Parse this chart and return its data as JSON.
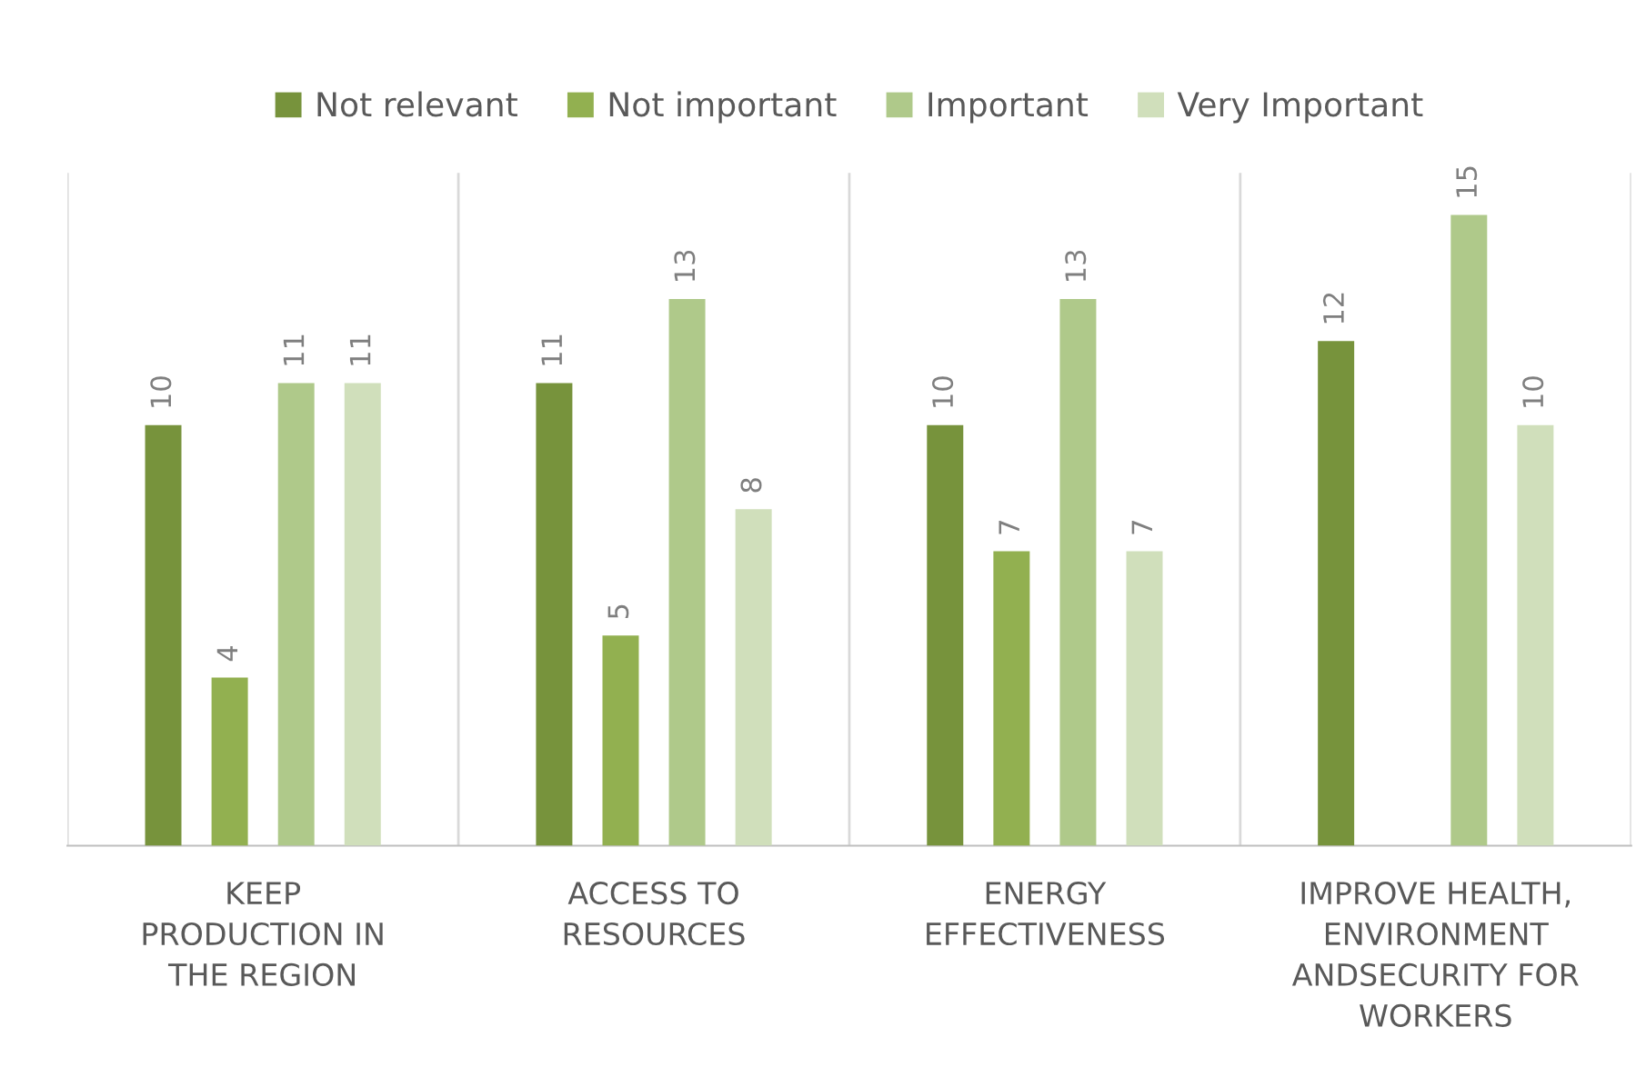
{
  "chart_data": {
    "type": "bar",
    "categories": [
      "KEEP\nPRODUCTION IN\nTHE REGION",
      "ACCESS TO\nRESOURCES",
      "ENERGY\nEFFECTIVENESS",
      "IMPROVE HEALTH,\nENVIRONMENT\nANDSECURITY FOR\nWORKERS"
    ],
    "series": [
      {
        "name": "Not relevant",
        "color": "#77933c",
        "values": [
          10,
          11,
          10,
          12
        ]
      },
      {
        "name": "Not important",
        "color": "#92b050",
        "values": [
          4,
          5,
          7,
          null
        ]
      },
      {
        "name": "Important",
        "color": "#afc98a",
        "values": [
          11,
          13,
          13,
          15
        ]
      },
      {
        "name": "Very Important",
        "color": "#d0dfbb",
        "values": [
          11,
          8,
          7,
          10
        ]
      }
    ],
    "ylim": [
      0,
      16
    ],
    "tick_labels": "x",
    "data_labels": true,
    "grid": "x",
    "legend": "top"
  }
}
